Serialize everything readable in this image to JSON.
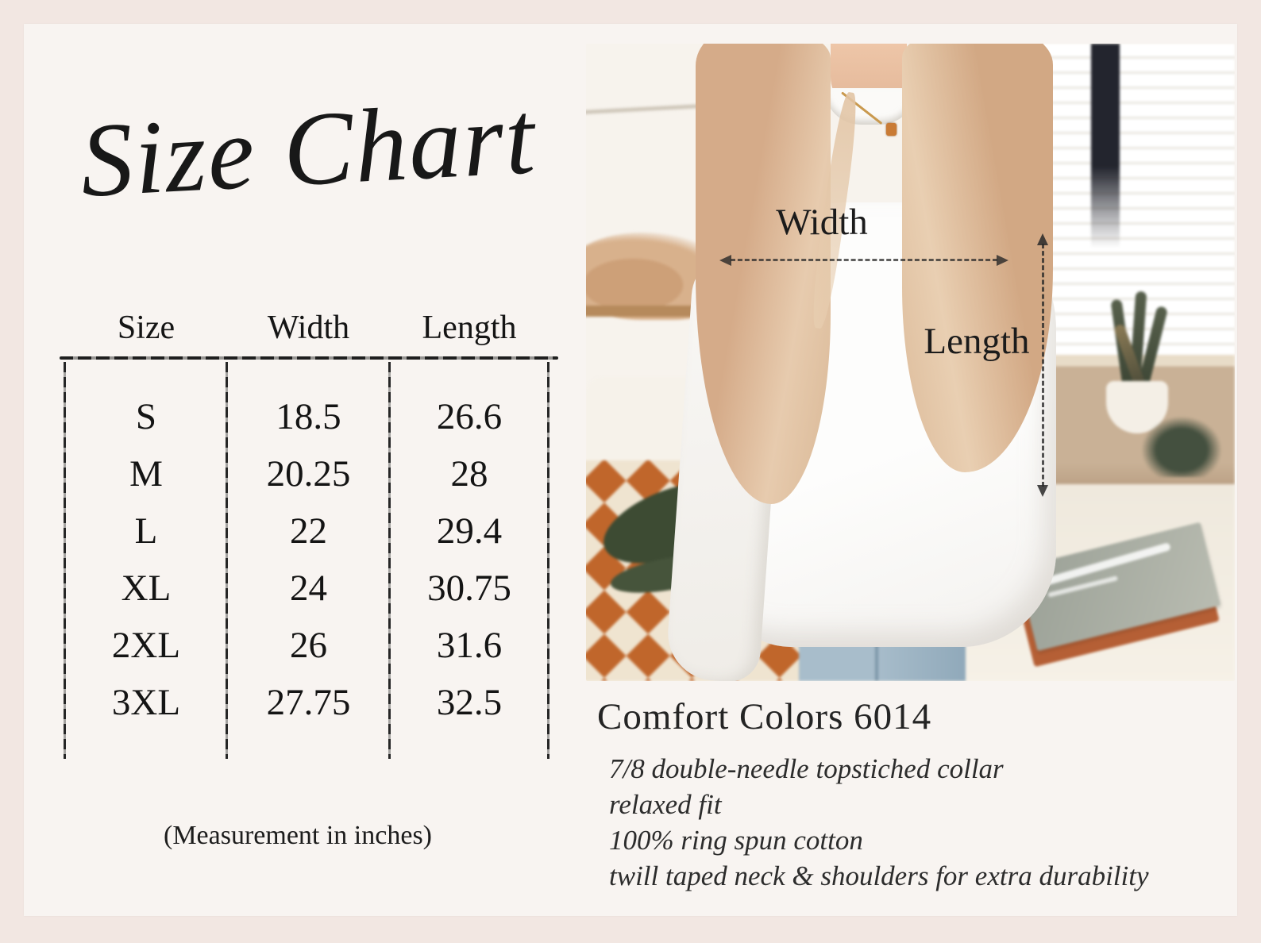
{
  "page": {
    "title": "Size Chart"
  },
  "size_table": {
    "headers": [
      "Size",
      "Width",
      "Length"
    ],
    "rows": [
      {
        "size": "S",
        "width": "18.5",
        "length": "26.6"
      },
      {
        "size": "M",
        "width": "20.25",
        "length": "28"
      },
      {
        "size": "L",
        "width": "22",
        "length": "29.4"
      },
      {
        "size": "XL",
        "width": "24",
        "length": "30.75"
      },
      {
        "size": "2XL",
        "width": "26",
        "length": "31.6"
      },
      {
        "size": "3XL",
        "width": "27.75",
        "length": "32.5"
      }
    ],
    "note": "(Measurement in inches)"
  },
  "photo_annotations": {
    "width_label": "Width",
    "length_label": "Length"
  },
  "product": {
    "name": "Comfort Colors 6014",
    "features": [
      "7/8 double-needle topstiched collar",
      "relaxed fit",
      "100% ring spun cotton",
      "twill taped neck & shoulders for extra durability"
    ]
  },
  "colors": {
    "frame": "#f2e7e2",
    "card": "#f8f4f1",
    "text": "#1a1a1a",
    "checker_orange": "#c0662b",
    "denim": "#9db4c4"
  },
  "chart_data": {
    "type": "table",
    "title": "Size Chart",
    "subtitle": "(Measurement in inches)",
    "columns": [
      "Size",
      "Width",
      "Length"
    ],
    "rows": [
      [
        "S",
        18.5,
        26.6
      ],
      [
        "M",
        20.25,
        28
      ],
      [
        "L",
        22,
        29.4
      ],
      [
        "XL",
        24,
        30.75
      ],
      [
        "2XL",
        26,
        31.6
      ],
      [
        "3XL",
        27.75,
        32.5
      ]
    ]
  }
}
